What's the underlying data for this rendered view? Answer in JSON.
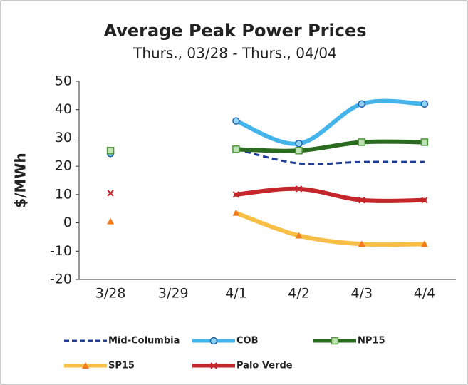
{
  "chart_data": {
    "type": "line",
    "title": "Average Peak Power Prices",
    "subtitle": "Thurs., 03/28 - Thurs., 04/04",
    "ylabel": "$/MWh",
    "categories": [
      "3/28",
      "3/29",
      "4/1",
      "4/2",
      "4/3",
      "4/4"
    ],
    "ylim": [
      -20,
      50
    ],
    "yticks": [
      -20,
      -10,
      0,
      10,
      20,
      30,
      40,
      50
    ],
    "grid": false,
    "smooth": true,
    "legend": "bottom",
    "series": [
      {
        "name": "Mid-Columbia",
        "color": "#1f3c96",
        "dash": true,
        "marker": "none",
        "marker_color": "#1f3c96",
        "values": [
          null,
          null,
          26,
          21,
          21.5,
          21.5
        ]
      },
      {
        "name": "COB",
        "color": "#45b4ea",
        "dash": false,
        "marker": "circle",
        "marker_color": "#1f5fa8",
        "values": [
          24.5,
          null,
          36,
          28,
          42,
          42
        ]
      },
      {
        "name": "NP15",
        "color": "#2b6b1f",
        "dash": false,
        "marker": "square",
        "marker_color": "#4c9a3a",
        "values": [
          25.5,
          null,
          26,
          25.5,
          28.5,
          28.5
        ]
      },
      {
        "name": "SP15",
        "color": "#f7bf45",
        "dash": false,
        "marker": "triangle",
        "marker_color": "#f07b1c",
        "values": [
          0.5,
          null,
          3.5,
          -4.5,
          -7.5,
          -7.5
        ]
      },
      {
        "name": "Palo Verde",
        "color": "#c4262b",
        "dash": false,
        "marker": "x",
        "marker_color": "#c4262b",
        "values": [
          10.5,
          null,
          10,
          12,
          8,
          8
        ]
      }
    ]
  }
}
